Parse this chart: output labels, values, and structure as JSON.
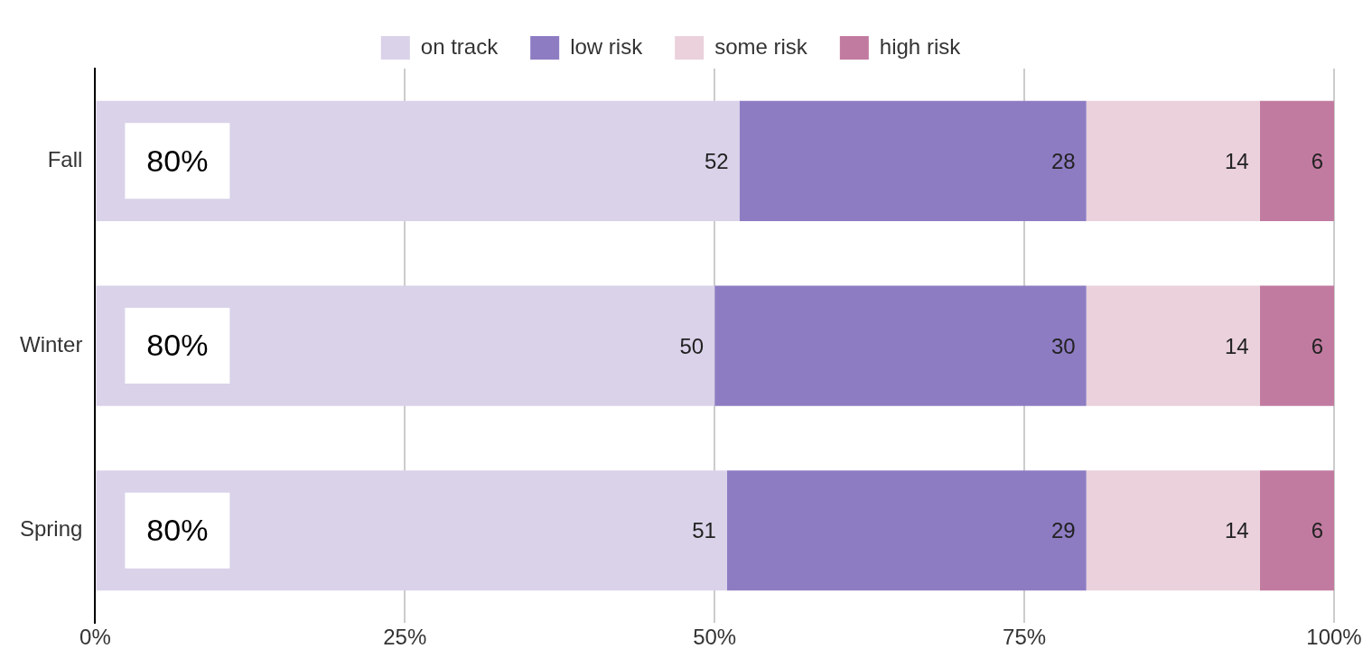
{
  "chart_data": {
    "type": "bar",
    "orientation": "horizontal",
    "stacked": true,
    "categories": [
      "Fall",
      "Winter",
      "Spring"
    ],
    "series": [
      {
        "name": "on track",
        "color": "#d9d2e9",
        "values": [
          52,
          50,
          51
        ]
      },
      {
        "name": "low risk",
        "color": "#8e7cc3",
        "values": [
          28,
          30,
          29
        ]
      },
      {
        "name": "some risk",
        "color": "#ead1dc",
        "values": [
          14,
          14,
          14
        ]
      },
      {
        "name": "high risk",
        "color": "#c27ba0",
        "values": [
          6,
          6,
          6
        ]
      }
    ],
    "xlim": [
      0,
      100
    ],
    "xticks": [
      {
        "value": 0,
        "label": "0%"
      },
      {
        "value": 25,
        "label": "25%"
      },
      {
        "value": 50,
        "label": "50%"
      },
      {
        "value": 75,
        "label": "75%"
      },
      {
        "value": 100,
        "label": "100%"
      }
    ],
    "grid": "x",
    "legend": "top",
    "data_labels": true,
    "annotations": [
      "80%",
      "80%",
      "80%"
    ]
  }
}
